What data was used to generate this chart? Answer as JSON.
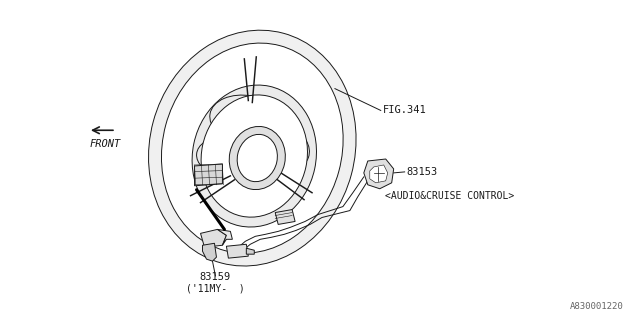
{
  "bg_color": "#ffffff",
  "line_color": "#1a1a1a",
  "fig_label": "FIG.341",
  "part1_label": "83153",
  "part1_sublabel": "<AUDIO&CRUISE CONTROL>",
  "part2_label": "83159",
  "part2_sublabel": "('11MY-  )",
  "front_label": "FRONT",
  "watermark": "A830001220",
  "lw": 0.7
}
